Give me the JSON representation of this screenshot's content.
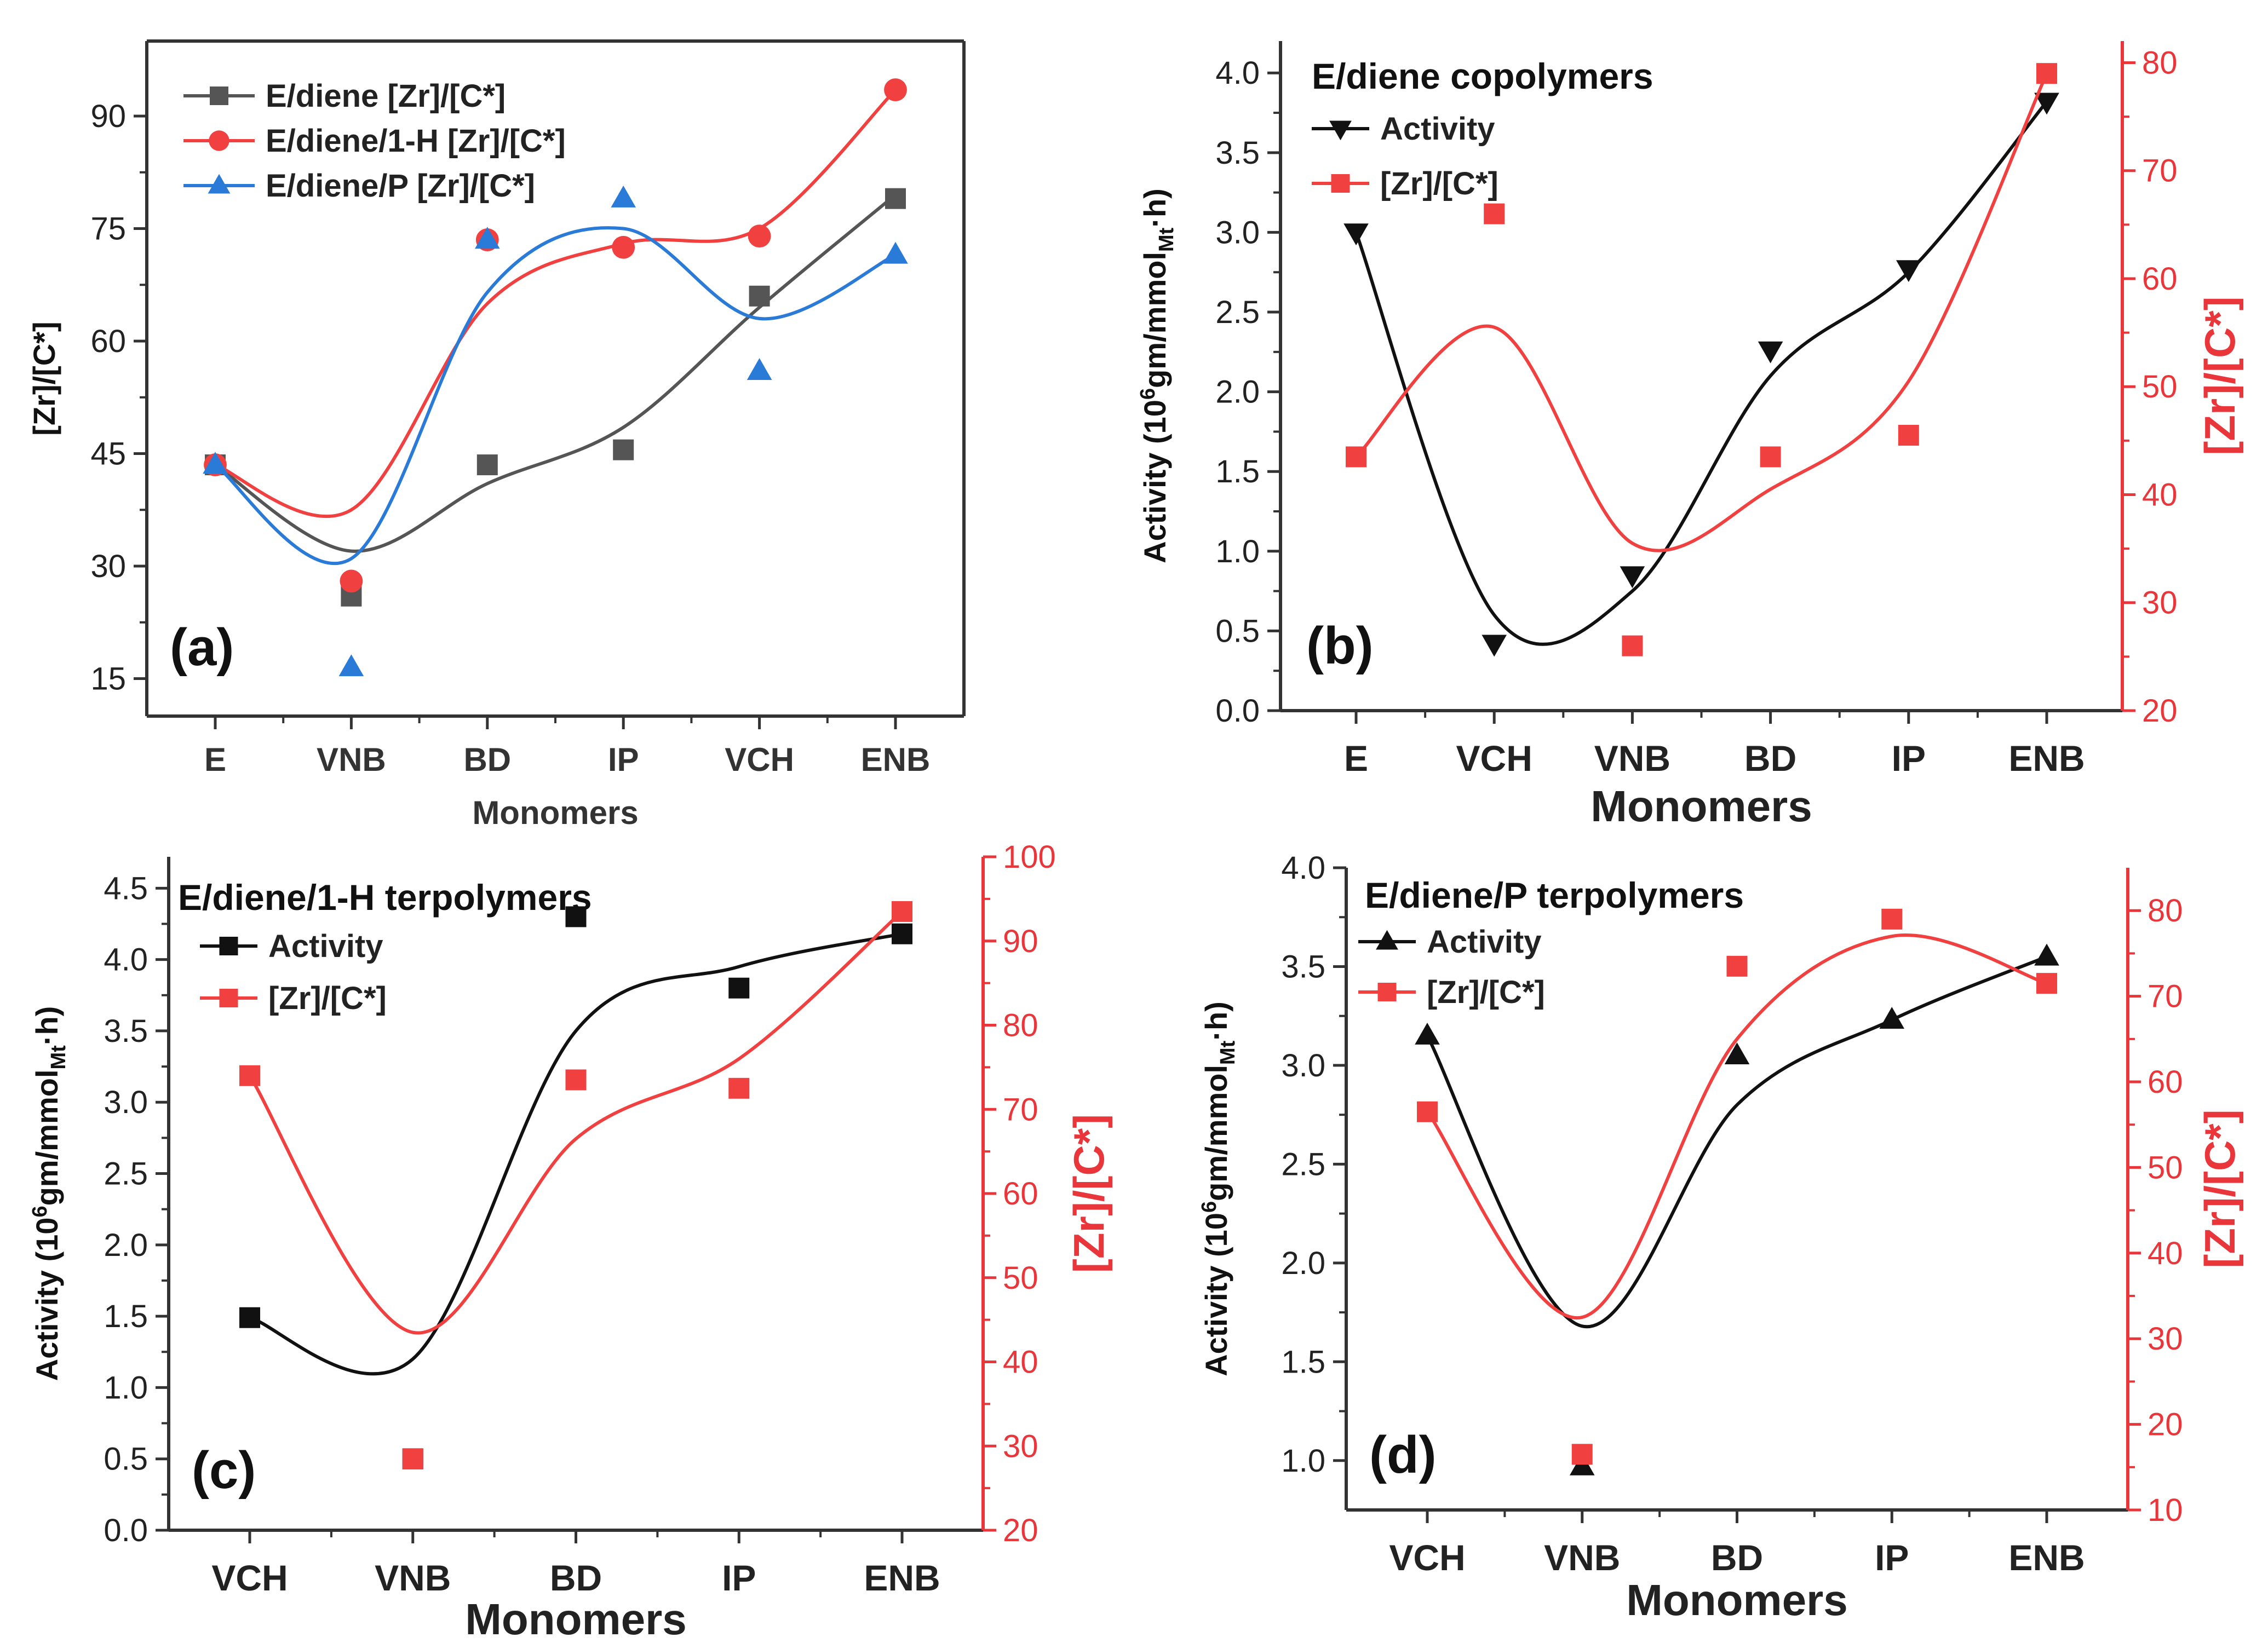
{
  "chart_data": [
    {
      "id": "a",
      "type": "scatter",
      "panel_label": "(a)",
      "title": "",
      "xlabel": "Monomers",
      "ylabel": "[Zr]/[C*]",
      "categories": [
        "E",
        "VNB",
        "BD",
        "IP",
        "VCH",
        "ENB"
      ],
      "ylim": [
        10,
        100
      ],
      "yticks": [
        15,
        30,
        45,
        60,
        75,
        90
      ],
      "legend_position": "top-left",
      "series": [
        {
          "name": "E/diene [Zr]/[C*]",
          "color": "#555555",
          "marker": "square",
          "values": [
            43.5,
            26,
            43.5,
            45.5,
            66,
            79
          ],
          "curve": [
            43.5,
            32,
            41,
            48.5,
            64.5,
            79.5
          ]
        },
        {
          "name": "E/diene/1-H [Zr]/[C*]",
          "color": "#f04040",
          "marker": "circle",
          "values": [
            43.5,
            28,
            73.5,
            72.5,
            74,
            93.5
          ],
          "curve": [
            43.5,
            37.5,
            65,
            73,
            75,
            93.5
          ]
        },
        {
          "name": "E/diene/P [Zr]/[C*]",
          "color": "#2a7ad8",
          "marker": "triangle-up",
          "values": [
            43.5,
            16.5,
            73.5,
            79,
            56,
            71.5
          ],
          "curve": [
            43.5,
            31,
            66.5,
            75,
            63,
            71.5
          ]
        }
      ]
    },
    {
      "id": "b",
      "type": "scatter",
      "panel_label": "(b)",
      "title": "E/diene copolymers",
      "xlabel": "Monomers",
      "ylabel_parts": [
        "Activity (10",
        "6",
        "gm/mmol",
        "Mt",
        "·h)"
      ],
      "y2label": "[Zr]/[C*]",
      "categories": [
        "E",
        "VCH",
        "VNB",
        "BD",
        "IP",
        "ENB"
      ],
      "ylim": [
        0,
        4.2
      ],
      "yticks": [
        "0.0",
        "0.5",
        "1.0",
        "1.5",
        "2.0",
        "2.5",
        "3.0",
        "3.5",
        "4.0"
      ],
      "y2lim": [
        20,
        82
      ],
      "y2ticks": [
        20,
        30,
        40,
        50,
        60,
        70,
        80
      ],
      "series": [
        {
          "name": "Activity",
          "axis": "left",
          "color": "#111111",
          "marker": "triangle-down",
          "values": [
            3.0,
            0.42,
            0.85,
            2.26,
            2.77,
            3.82
          ],
          "curve": [
            3.0,
            0.6,
            0.75,
            2.1,
            2.75,
            3.82
          ]
        },
        {
          "name": "[Zr]/[C*]",
          "axis": "right",
          "color": "#f04040",
          "marker": "square",
          "values": [
            43.5,
            66,
            26,
            43.5,
            45.5,
            79
          ],
          "curve": [
            43.5,
            55.5,
            35.5,
            40.5,
            50.5,
            79
          ]
        }
      ]
    },
    {
      "id": "c",
      "type": "scatter",
      "panel_label": "(c)",
      "title": "E/diene/1-H terpolymers",
      "xlabel": "Monomers",
      "ylabel_parts": [
        "Activity (10",
        "6",
        "gm/mmol",
        "Mt",
        "·h)"
      ],
      "y2label": "[Zr]/[C*]",
      "categories": [
        "VCH",
        "VNB",
        "BD",
        "IP",
        "ENB"
      ],
      "ylim": [
        0,
        4.72
      ],
      "yticks": [
        "0.0",
        "0.5",
        "1.0",
        "1.5",
        "2.0",
        "2.5",
        "3.0",
        "3.5",
        "4.0",
        "4.5"
      ],
      "y2lim": [
        20,
        100
      ],
      "y2ticks": [
        20,
        30,
        40,
        50,
        60,
        70,
        80,
        90,
        100
      ],
      "series": [
        {
          "name": "Activity",
          "axis": "left",
          "color": "#111111",
          "marker": "square",
          "values": [
            1.49,
            0.5,
            4.3,
            3.8,
            4.18
          ],
          "curve": [
            1.49,
            1.2,
            3.5,
            3.95,
            4.18
          ]
        },
        {
          "name": "[Zr]/[C*]",
          "axis": "right",
          "color": "#f04040",
          "marker": "square",
          "values": [
            74,
            28.5,
            73.5,
            72.5,
            93.5
          ],
          "curve": [
            74,
            43.5,
            66.5,
            76,
            93.5
          ]
        }
      ]
    },
    {
      "id": "d",
      "type": "scatter",
      "panel_label": "(d)",
      "title": "E/diene/P terpolymers",
      "xlabel": "Monomers",
      "ylabel_parts": [
        "Activity (10",
        "6",
        "gm/mmol",
        "Mt",
        "·h)"
      ],
      "y2label": "[Zr]/[C*]",
      "categories": [
        "VCH",
        "VNB",
        "BD",
        "IP",
        "ENB"
      ],
      "ylim": [
        0.75,
        4.0
      ],
      "yticks": [
        "1.0",
        "1.5",
        "2.0",
        "2.5",
        "3.0",
        "3.5",
        "4.0"
      ],
      "y2lim": [
        10,
        85
      ],
      "y2ticks": [
        10,
        20,
        30,
        40,
        50,
        60,
        70,
        80
      ],
      "series": [
        {
          "name": "Activity",
          "axis": "left",
          "color": "#111111",
          "marker": "triangle-up",
          "values": [
            3.15,
            0.97,
            3.05,
            3.23,
            3.55
          ],
          "curve": [
            3.15,
            1.68,
            2.8,
            3.23,
            3.55
          ]
        },
        {
          "name": "[Zr]/[C*]",
          "axis": "right",
          "color": "#f04040",
          "marker": "square",
          "values": [
            56.5,
            16.5,
            73.5,
            79,
            71.5
          ],
          "curve": [
            56.5,
            32.5,
            65,
            77,
            71.5
          ]
        }
      ]
    }
  ]
}
